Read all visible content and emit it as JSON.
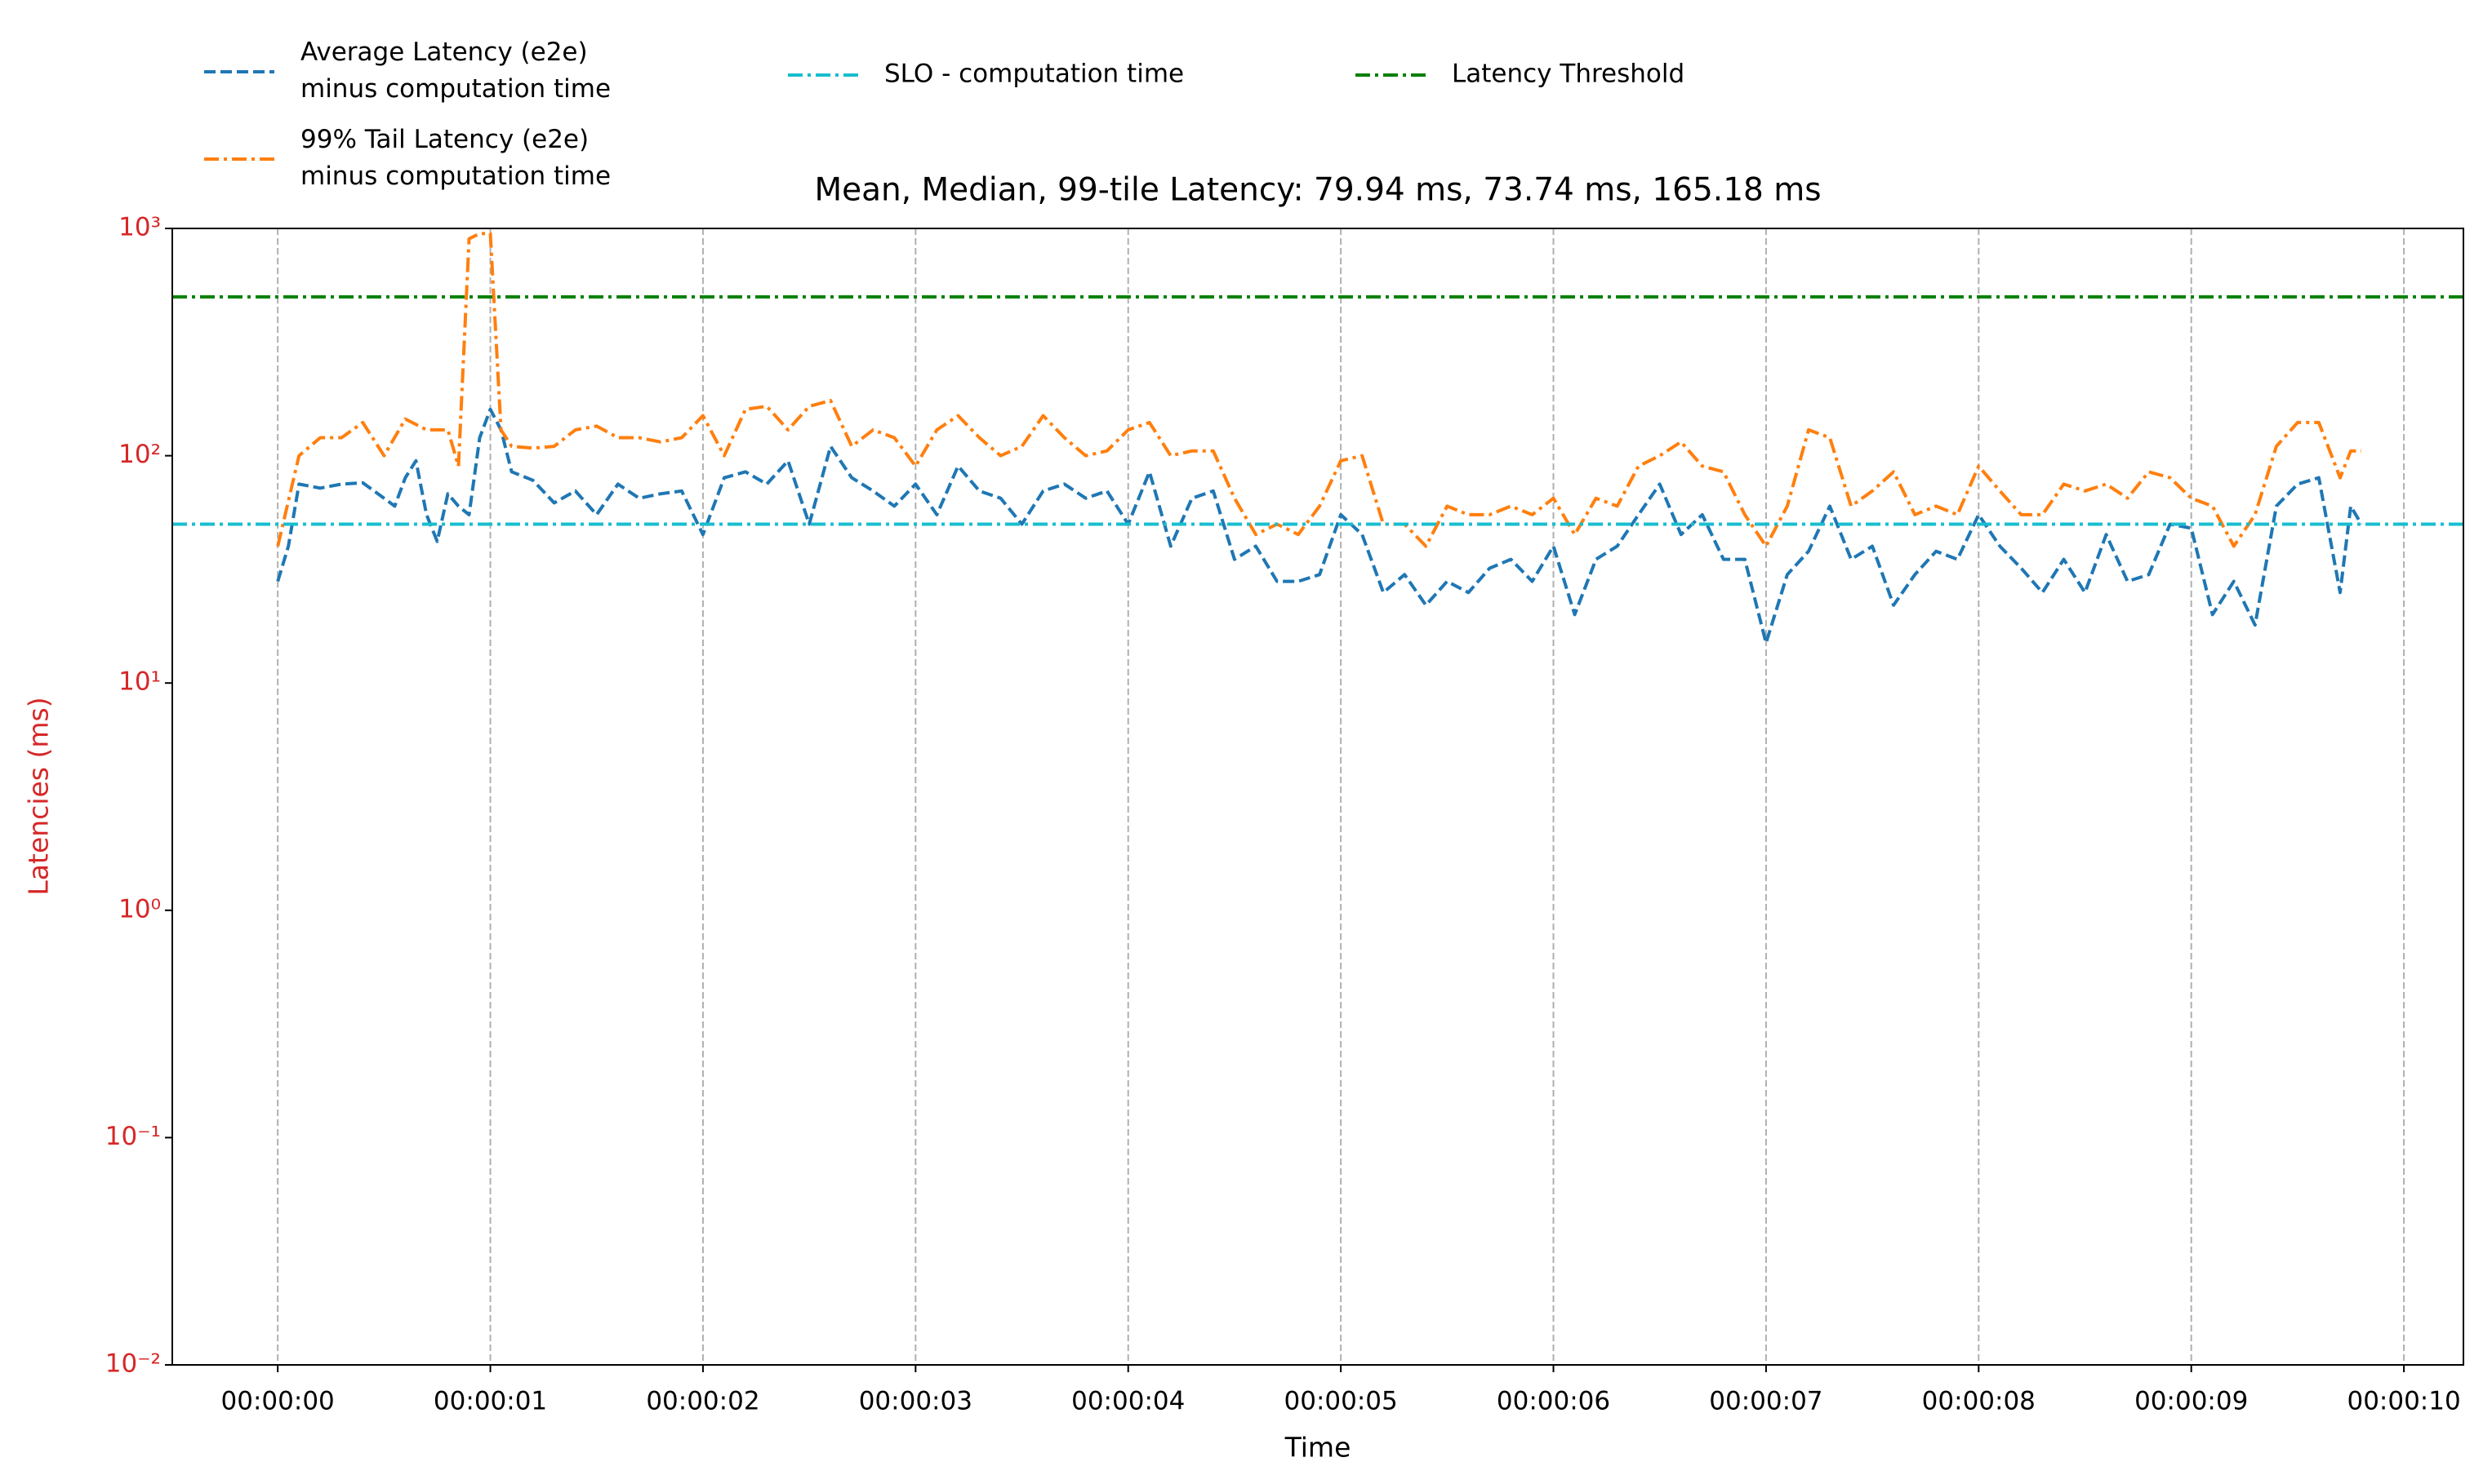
{
  "chart_data": {
    "type": "line",
    "title": "Mean, Median, 99-tile Latency: 79.94 ms, 73.74 ms, 165.18 ms",
    "xlabel": "Time",
    "ylabel": "Latencies (ms)",
    "ylabel_color": "#d62728",
    "yscale": "log",
    "grid": "x",
    "legend": "upper left outside",
    "xlim": [
      -0.496,
      10.28
    ],
    "ylim": [
      0.01,
      1000
    ],
    "xticks": [
      {
        "value": 0,
        "label": "00:00:00"
      },
      {
        "value": 1,
        "label": "00:00:01"
      },
      {
        "value": 2,
        "label": "00:00:02"
      },
      {
        "value": 3,
        "label": "00:00:03"
      },
      {
        "value": 4,
        "label": "00:00:04"
      },
      {
        "value": 5,
        "label": "00:00:05"
      },
      {
        "value": 6,
        "label": "00:00:06"
      },
      {
        "value": 7,
        "label": "00:00:07"
      },
      {
        "value": 8,
        "label": "00:00:08"
      },
      {
        "value": 9,
        "label": "00:00:09"
      },
      {
        "value": 10,
        "label": "00:00:10"
      }
    ],
    "yticks": [
      {
        "value": 0.01,
        "label": "10⁻²"
      },
      {
        "value": 0.1,
        "label": "10⁻¹"
      },
      {
        "value": 1,
        "label": "10⁰"
      },
      {
        "value": 10,
        "label": "10¹"
      },
      {
        "value": 100,
        "label": "10²"
      },
      {
        "value": 1000,
        "label": "10³"
      }
    ],
    "series": [
      {
        "name": "Average Latency (e2e)\nminus computation time",
        "color": "#1f77b4",
        "linestyle": "--",
        "x": [
          0,
          0.05,
          0.1,
          0.2,
          0.3,
          0.4,
          0.5,
          0.55,
          0.6,
          0.65,
          0.7,
          0.75,
          0.8,
          0.85,
          0.9,
          0.95,
          1.0,
          1.05,
          1.1,
          1.2,
          1.3,
          1.4,
          1.5,
          1.6,
          1.7,
          1.8,
          1.9,
          2.0,
          2.1,
          2.2,
          2.3,
          2.4,
          2.5,
          2.6,
          2.7,
          2.8,
          2.9,
          3.0,
          3.1,
          3.2,
          3.3,
          3.4,
          3.5,
          3.6,
          3.7,
          3.8,
          3.9,
          4.0,
          4.1,
          4.2,
          4.3,
          4.4,
          4.5,
          4.6,
          4.7,
          4.8,
          4.9,
          5.0,
          5.1,
          5.2,
          5.3,
          5.4,
          5.5,
          5.6,
          5.7,
          5.8,
          5.9,
          6.0,
          6.1,
          6.2,
          6.3,
          6.4,
          6.5,
          6.6,
          6.7,
          6.8,
          6.9,
          7.0,
          7.1,
          7.2,
          7.3,
          7.4,
          7.5,
          7.6,
          7.7,
          7.8,
          7.9,
          8.0,
          8.1,
          8.2,
          8.3,
          8.4,
          8.5,
          8.6,
          8.7,
          8.8,
          8.9,
          9.0,
          9.1,
          9.2,
          9.3,
          9.4,
          9.5,
          9.6,
          9.7,
          9.75,
          9.8
        ],
        "values": [
          28,
          40,
          75,
          72,
          75,
          76,
          65,
          60,
          80,
          95,
          55,
          42,
          68,
          60,
          55,
          120,
          160,
          130,
          85,
          78,
          62,
          70,
          55,
          75,
          65,
          68,
          70,
          45,
          80,
          85,
          75,
          95,
          50,
          110,
          80,
          70,
          60,
          75,
          55,
          90,
          70,
          65,
          50,
          70,
          75,
          65,
          70,
          50,
          85,
          40,
          65,
          70,
          35,
          40,
          28,
          28,
          30,
          55,
          45,
          25,
          30,
          22,
          28,
          25,
          32,
          35,
          28,
          40,
          20,
          35,
          40,
          55,
          75,
          45,
          55,
          35,
          35,
          15,
          30,
          38,
          60,
          35,
          40,
          22,
          30,
          38,
          35,
          55,
          40,
          32,
          25,
          35,
          25,
          45,
          28,
          30,
          50,
          48,
          20,
          28,
          18,
          60,
          75,
          80,
          25,
          60,
          50
        ]
      },
      {
        "name": "99% Tail Latency (e2e)\nminus computation time",
        "color": "#ff7f0e",
        "linestyle": "-.",
        "x": [
          0,
          0.1,
          0.2,
          0.3,
          0.4,
          0.5,
          0.6,
          0.7,
          0.8,
          0.85,
          0.9,
          0.95,
          1.0,
          1.05,
          1.1,
          1.2,
          1.3,
          1.4,
          1.5,
          1.6,
          1.7,
          1.8,
          1.9,
          2.0,
          2.1,
          2.2,
          2.3,
          2.4,
          2.5,
          2.6,
          2.7,
          2.8,
          2.9,
          3.0,
          3.1,
          3.2,
          3.3,
          3.4,
          3.5,
          3.6,
          3.7,
          3.8,
          3.9,
          4.0,
          4.1,
          4.2,
          4.3,
          4.4,
          4.5,
          4.6,
          4.7,
          4.8,
          4.9,
          5.0,
          5.1,
          5.2,
          5.3,
          5.4,
          5.5,
          5.6,
          5.7,
          5.8,
          5.9,
          6.0,
          6.1,
          6.2,
          6.3,
          6.4,
          6.5,
          6.6,
          6.7,
          6.8,
          6.9,
          7.0,
          7.1,
          7.2,
          7.3,
          7.4,
          7.5,
          7.6,
          7.7,
          7.8,
          7.9,
          8.0,
          8.1,
          8.2,
          8.3,
          8.4,
          8.5,
          8.6,
          8.7,
          8.8,
          8.9,
          9.0,
          9.1,
          9.2,
          9.3,
          9.4,
          9.5,
          9.6,
          9.7,
          9.75,
          9.8
        ],
        "values": [
          40,
          100,
          120,
          120,
          140,
          100,
          145,
          130,
          130,
          90,
          900,
          950,
          950,
          130,
          110,
          108,
          110,
          130,
          135,
          120,
          120,
          115,
          120,
          150,
          100,
          160,
          165,
          130,
          165,
          175,
          110,
          130,
          120,
          90,
          130,
          150,
          120,
          100,
          110,
          150,
          120,
          100,
          105,
          130,
          140,
          100,
          105,
          105,
          65,
          45,
          50,
          45,
          60,
          95,
          100,
          50,
          50,
          40,
          60,
          55,
          55,
          60,
          55,
          65,
          45,
          65,
          60,
          90,
          100,
          115,
          90,
          85,
          55,
          40,
          60,
          130,
          120,
          60,
          70,
          85,
          55,
          60,
          55,
          90,
          70,
          55,
          55,
          75,
          70,
          75,
          65,
          85,
          80,
          65,
          60,
          40,
          55,
          110,
          140,
          140,
          80,
          105,
          105
        ]
      },
      {
        "name": "SLO - computation time",
        "color": "#17becf",
        "linestyle": "-.",
        "value": 50
      },
      {
        "name": "Latency Threshold",
        "color": "#008000",
        "linestyle": "-.",
        "value": 500
      }
    ]
  }
}
